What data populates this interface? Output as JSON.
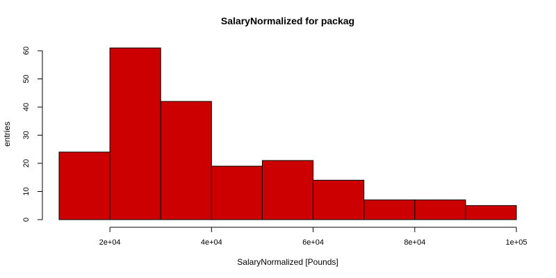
{
  "chart_data": {
    "type": "bar",
    "histogram": true,
    "title": "SalaryNormalized for packag",
    "xlabel": "SalaryNormalized [Pounds]",
    "ylabel": "entries",
    "bins": [
      {
        "start": 10000,
        "end": 20000,
        "count": 24
      },
      {
        "start": 20000,
        "end": 30000,
        "count": 61
      },
      {
        "start": 30000,
        "end": 40000,
        "count": 42
      },
      {
        "start": 40000,
        "end": 50000,
        "count": 19
      },
      {
        "start": 50000,
        "end": 60000,
        "count": 21
      },
      {
        "start": 60000,
        "end": 70000,
        "count": 14
      },
      {
        "start": 70000,
        "end": 80000,
        "count": 7
      },
      {
        "start": 80000,
        "end": 90000,
        "count": 7
      },
      {
        "start": 90000,
        "end": 100000,
        "count": 5
      }
    ],
    "xlim": [
      10000,
      100000
    ],
    "ylim": [
      0,
      61
    ],
    "x_ticks": [
      {
        "value": 20000,
        "label": "2e+04"
      },
      {
        "value": 40000,
        "label": "4e+04"
      },
      {
        "value": 60000,
        "label": "6e+04"
      },
      {
        "value": 80000,
        "label": "8e+04"
      },
      {
        "value": 100000,
        "label": "1e+05"
      }
    ],
    "y_ticks": [
      {
        "value": 0,
        "label": "0"
      },
      {
        "value": 10,
        "label": "10"
      },
      {
        "value": 20,
        "label": "20"
      },
      {
        "value": 30,
        "label": "30"
      },
      {
        "value": 40,
        "label": "40"
      },
      {
        "value": 50,
        "label": "50"
      },
      {
        "value": 60,
        "label": "60"
      }
    ],
    "bar_color": "#cd0000",
    "bar_border_color": "#000000",
    "grid": false,
    "legend": "none"
  }
}
